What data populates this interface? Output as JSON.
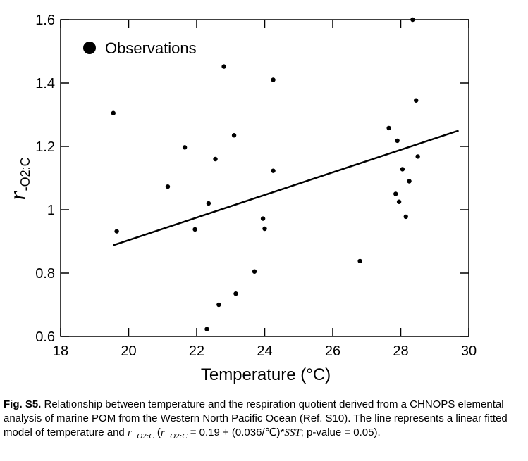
{
  "chart_data": {
    "type": "scatter",
    "xlabel": "Temperature (°C)",
    "ylabel_main": "r",
    "ylabel_sub": "-O2:C",
    "xlim": [
      18,
      30
    ],
    "ylim": [
      0.6,
      1.6
    ],
    "x_ticks": [
      18,
      20,
      22,
      24,
      26,
      28,
      30
    ],
    "x_tick_labels": [
      "18",
      "20",
      "22",
      "24",
      "26",
      "28",
      "30"
    ],
    "y_ticks": [
      0.6,
      0.8,
      1.0,
      1.2,
      1.4,
      1.6
    ],
    "y_tick_labels": [
      "0.6",
      "0.8",
      "1",
      "1.2",
      "1.4",
      "1.6"
    ],
    "legend": {
      "label": "Observations",
      "position": "top-left"
    },
    "series": [
      {
        "name": "Observations",
        "points": [
          {
            "x": 19.55,
            "y": 1.305
          },
          {
            "x": 19.65,
            "y": 0.932
          },
          {
            "x": 21.15,
            "y": 1.073
          },
          {
            "x": 21.65,
            "y": 1.197
          },
          {
            "x": 21.95,
            "y": 0.938
          },
          {
            "x": 22.3,
            "y": 0.623
          },
          {
            "x": 22.35,
            "y": 1.02
          },
          {
            "x": 22.55,
            "y": 1.16
          },
          {
            "x": 22.65,
            "y": 0.7
          },
          {
            "x": 22.8,
            "y": 1.452
          },
          {
            "x": 23.1,
            "y": 1.235
          },
          {
            "x": 23.15,
            "y": 0.735
          },
          {
            "x": 23.7,
            "y": 0.805
          },
          {
            "x": 23.95,
            "y": 0.972
          },
          {
            "x": 24.0,
            "y": 0.94
          },
          {
            "x": 24.25,
            "y": 1.41
          },
          {
            "x": 24.25,
            "y": 1.123
          },
          {
            "x": 26.8,
            "y": 0.838
          },
          {
            "x": 27.65,
            "y": 1.258
          },
          {
            "x": 27.85,
            "y": 1.05
          },
          {
            "x": 27.9,
            "y": 1.218
          },
          {
            "x": 27.95,
            "y": 1.025
          },
          {
            "x": 28.05,
            "y": 1.128
          },
          {
            "x": 28.15,
            "y": 0.978
          },
          {
            "x": 28.25,
            "y": 1.09
          },
          {
            "x": 28.35,
            "y": 1.6
          },
          {
            "x": 28.45,
            "y": 1.345
          },
          {
            "x": 28.5,
            "y": 1.168
          }
        ]
      }
    ],
    "fit_line": {
      "x": [
        19.55,
        29.7
      ],
      "y": [
        0.888,
        1.25
      ]
    }
  },
  "caption": {
    "fig_label": "Fig. S5.",
    "text_1": " Relationship between temperature and the respiration quotient derived from a CHNOPS elemental analysis of marine POM from the Western North Pacific Ocean (Ref. S10). The line represents a linear fitted model of temperature and ",
    "math_1": "r",
    "math_1_sub": "−O2:C",
    "text_2": " (",
    "math_2": "r",
    "math_2_sub": "−O2:C",
    "text_3": " = 0.19 + (0.036/℃)*",
    "math_3": "SST",
    "text_4": "; p-value = 0.05)."
  }
}
